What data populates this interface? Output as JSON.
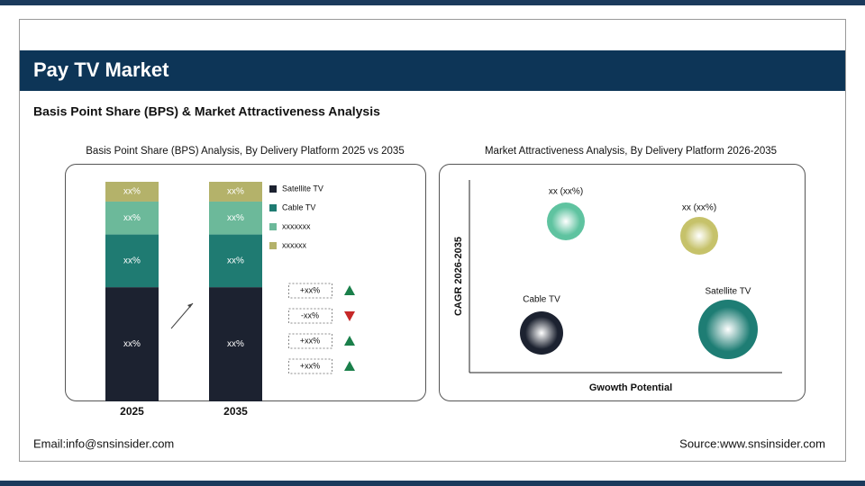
{
  "header": {
    "title": "Pay TV Market",
    "subtitle": "Basis Point Share (BPS) & Market Attractiveness Analysis"
  },
  "bps_chart": {
    "type": "stacked-bar",
    "title": "Basis Point Share (BPS) Analysis, By Delivery Platform 2025 vs 2035",
    "categories": [
      "2025",
      "2035"
    ],
    "series": [
      {
        "name": "Satellite TV",
        "color": "#1c2230",
        "values": [
          52,
          52
        ],
        "value_labels": [
          "xx%",
          "xx%"
        ]
      },
      {
        "name": "Cable TV",
        "color": "#1f7b72",
        "values": [
          24,
          24
        ],
        "value_labels": [
          "xx%",
          "xx%"
        ]
      },
      {
        "name": "xxxxxxx",
        "color": "#6cb99a",
        "values": [
          15,
          15
        ],
        "value_labels": [
          "xx%",
          "xx%"
        ]
      },
      {
        "name": "xxxxxx",
        "color": "#b4b26a",
        "values": [
          9,
          9
        ],
        "value_labels": [
          "xx%",
          "xx%"
        ]
      }
    ],
    "changes": [
      {
        "label": "+xx%",
        "direction": "up"
      },
      {
        "label": "-xx%",
        "direction": "down"
      },
      {
        "label": "+xx%",
        "direction": "up"
      },
      {
        "label": "+xx%",
        "direction": "up"
      }
    ]
  },
  "attractiveness_chart": {
    "type": "bubble",
    "title": "Market Attractiveness Analysis, By Delivery Platform 2026-2035",
    "x_label": "Gwowth Potential",
    "y_label": "CAGR 2026-2035",
    "bubbles": [
      {
        "label": "xx (xx%)",
        "color": "#5fc3a0"
      },
      {
        "label": "xx (xx%)",
        "color": "#c6c26a"
      },
      {
        "label": "Cable TV",
        "color": "#1c2230"
      },
      {
        "label": "Satellite TV",
        "color": "#1e7d74"
      }
    ]
  },
  "footer": {
    "email": "Email:info@snsinsider.com",
    "source": "Source:www.snsinsider.com"
  }
}
